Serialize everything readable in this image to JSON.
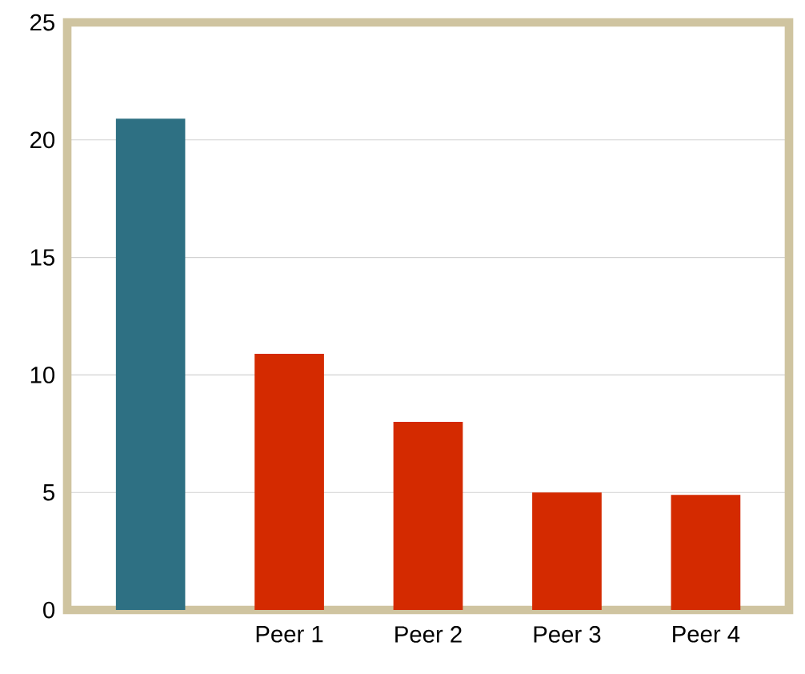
{
  "chart_data": {
    "type": "bar",
    "categories": [
      null,
      "Peer 1",
      "Peer 2",
      "Peer 3",
      "Peer 4"
    ],
    "values": [
      20.9,
      10.9,
      8,
      5,
      4.9
    ],
    "colors": [
      "#2e7083",
      "#d42a00",
      "#d42a00",
      "#d42a00",
      "#d42a00"
    ],
    "ylim": [
      0,
      25
    ],
    "yticks": [
      0,
      5,
      10,
      15,
      20,
      25
    ],
    "grid": "y"
  }
}
